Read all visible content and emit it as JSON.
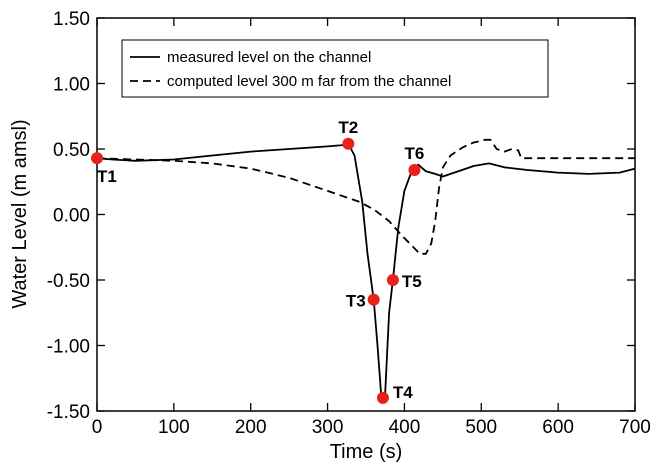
{
  "chart_data": {
    "type": "line",
    "title": "",
    "xlabel": "Time (s)",
    "ylabel": "Water Level (m amsl)",
    "xlim": [
      0,
      700
    ],
    "ylim": [
      -1.5,
      1.5
    ],
    "x_ticks": [
      0,
      100,
      200,
      300,
      400,
      500,
      600,
      700
    ],
    "x_tick_labels": [
      "0",
      "100",
      "200",
      "300",
      "400",
      "500",
      "600",
      "700"
    ],
    "y_ticks": [
      1.5,
      1.0,
      0.5,
      0.0,
      -0.5,
      -1.0,
      -1.5
    ],
    "y_tick_labels": [
      "1.50",
      "1.00",
      "0.50",
      "0.00",
      "-0.50",
      "-1.00",
      "-1.50"
    ],
    "grid": false,
    "legend_position": "top",
    "series": [
      {
        "name": "measured level on the channel",
        "style": "solid",
        "color": "#000000",
        "x": [
          0,
          20,
          50,
          100,
          150,
          200,
          250,
          300,
          320,
          327,
          335,
          345,
          352,
          360,
          365,
          370,
          375,
          380,
          385,
          392,
          400,
          410,
          418,
          428,
          440,
          450,
          460,
          475,
          490,
          510,
          530,
          560,
          600,
          640,
          680,
          700
        ],
        "y": [
          0.43,
          0.42,
          0.41,
          0.42,
          0.45,
          0.48,
          0.5,
          0.52,
          0.53,
          0.54,
          0.45,
          0.1,
          -0.3,
          -0.65,
          -1.0,
          -1.4,
          -1.36,
          -0.75,
          -0.5,
          -0.1,
          0.18,
          0.34,
          0.38,
          0.33,
          0.31,
          0.29,
          0.31,
          0.34,
          0.37,
          0.39,
          0.36,
          0.34,
          0.32,
          0.31,
          0.32,
          0.35
        ]
      },
      {
        "name": "computed level 300 m far from the channel",
        "style": "dashed",
        "color": "#000000",
        "x": [
          0,
          50,
          100,
          150,
          200,
          250,
          280,
          300,
          320,
          340,
          360,
          380,
          395,
          410,
          420,
          428,
          435,
          440,
          445,
          450,
          460,
          475,
          490,
          505,
          512,
          520,
          530,
          540,
          548,
          552,
          560,
          600,
          650,
          700
        ],
        "y": [
          0.43,
          0.42,
          0.41,
          0.39,
          0.35,
          0.28,
          0.22,
          0.18,
          0.14,
          0.1,
          0.04,
          -0.05,
          -0.15,
          -0.24,
          -0.3,
          -0.3,
          -0.22,
          -0.05,
          0.2,
          0.36,
          0.45,
          0.51,
          0.55,
          0.57,
          0.57,
          0.5,
          0.48,
          0.5,
          0.49,
          0.43,
          0.43,
          0.43,
          0.43,
          0.43
        ]
      }
    ],
    "marker_color": "#e8211c",
    "markers": [
      {
        "label": "T1",
        "x": 0,
        "y": 0.43
      },
      {
        "label": "T2",
        "x": 327,
        "y": 0.54
      },
      {
        "label": "T3",
        "x": 360,
        "y": -0.65
      },
      {
        "label": "T4",
        "x": 372,
        "y": -1.4
      },
      {
        "label": "T5",
        "x": 385,
        "y": -0.5
      },
      {
        "label": "T6",
        "x": 413,
        "y": 0.34
      }
    ]
  }
}
